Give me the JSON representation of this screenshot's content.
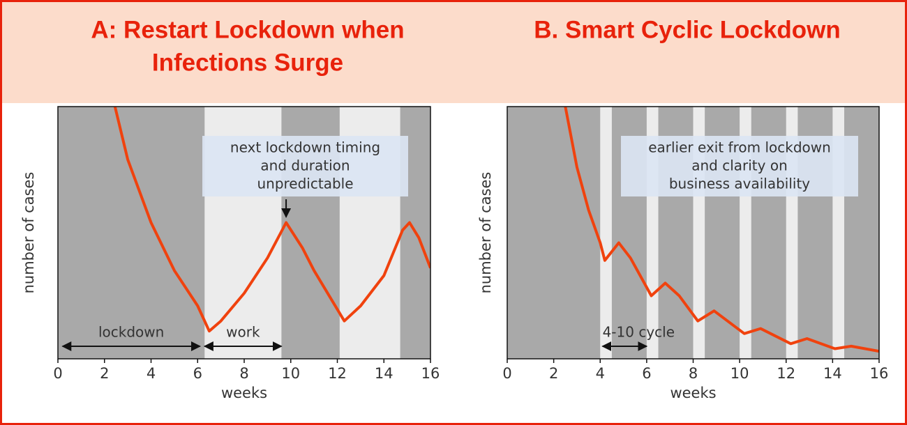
{
  "chart_data": [
    {
      "type": "line",
      "title": [
        "A: Restart Lockdown when",
        "Infections Surge"
      ],
      "xlabel": "weeks",
      "ylabel": "number of cases",
      "x": [
        2.45,
        3,
        4,
        5,
        6,
        6.5,
        7,
        8,
        9,
        9.8,
        10.5,
        11,
        12.3,
        13,
        14,
        14.8,
        15.1,
        15.5,
        16
      ],
      "values": [
        100,
        79,
        54,
        35,
        21,
        11,
        15,
        26,
        40,
        54,
        44,
        35,
        15,
        21,
        33,
        51,
        54,
        48,
        36
      ],
      "color": "#f0420e",
      "xlim": [
        0,
        16
      ],
      "ylim": [
        0,
        100
      ],
      "xticks": [
        0,
        2,
        4,
        6,
        8,
        10,
        12,
        14,
        16
      ],
      "shade_color": "#a9a9a9",
      "band_color": "#ececec",
      "bands": [
        [
          6.3,
          9.6
        ],
        [
          12.1,
          14.7
        ]
      ],
      "annotation": [
        "next lockdown timing",
        "and duration",
        "unpredictable"
      ],
      "spans": [
        {
          "text": "lockdown",
          "x": [
            0.2,
            6.1
          ]
        },
        {
          "text": "work",
          "x": [
            6.3,
            9.6
          ]
        }
      ]
    },
    {
      "type": "line",
      "title": [
        "B. Smart Cyclic Lockdown"
      ],
      "xlabel": "weeks",
      "ylabel": "number of cases",
      "x": [
        2.5,
        3,
        3.5,
        4,
        4.2,
        4.8,
        5.3,
        6.2,
        6.8,
        7.4,
        8.2,
        8.9,
        10.2,
        10.9,
        12.2,
        12.9,
        14.1,
        14.8,
        16
      ],
      "values": [
        100,
        76,
        59,
        46,
        39,
        46,
        40,
        25,
        30,
        25,
        15,
        19,
        10,
        12,
        6,
        8,
        4,
        5,
        3
      ],
      "color": "#f0420e",
      "xlim": [
        0,
        16
      ],
      "ylim": [
        0,
        100
      ],
      "xticks": [
        0,
        2,
        4,
        6,
        8,
        10,
        12,
        14,
        16
      ],
      "shade_color": "#a9a9a9",
      "band_color": "#ececec",
      "bands": [
        [
          4,
          4.5
        ],
        [
          6,
          6.5
        ],
        [
          8,
          8.5
        ],
        [
          10,
          10.5
        ],
        [
          12,
          12.5
        ],
        [
          14,
          14.5
        ]
      ],
      "annotation": [
        "earlier exit from lockdown",
        "and clarity on",
        "business availability"
      ],
      "spans": [
        {
          "text": "4-10 cycle",
          "x": [
            4.1,
            6
          ]
        }
      ]
    }
  ]
}
